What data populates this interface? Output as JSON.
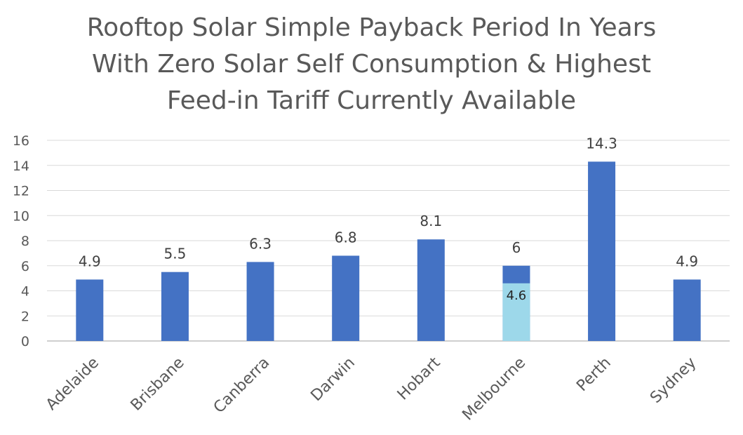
{
  "chart_data": {
    "type": "bar",
    "title_lines": [
      "Rooftop Solar Simple Payback Period In Years",
      "With Zero Solar Self Consumption & Highest",
      "Feed-in Tariff Currently Available"
    ],
    "categories": [
      "Adelaide",
      "Brisbane",
      "Canberra",
      "Darwin",
      "Hobart",
      "Melbourne",
      "Perth",
      "Sydney"
    ],
    "series": [
      {
        "values": [
          4.9,
          5.5,
          6.3,
          6.8,
          8.1,
          6,
          14.3,
          4.9
        ],
        "color": "#4472C4"
      }
    ],
    "overlay": {
      "category": "Melbourne",
      "value": 4.6,
      "color": "#9DD8EA"
    },
    "ylim": [
      0,
      16
    ],
    "yticks": [
      0,
      2,
      4,
      6,
      8,
      10,
      12,
      14,
      16
    ],
    "grid": true,
    "legend": "none"
  }
}
